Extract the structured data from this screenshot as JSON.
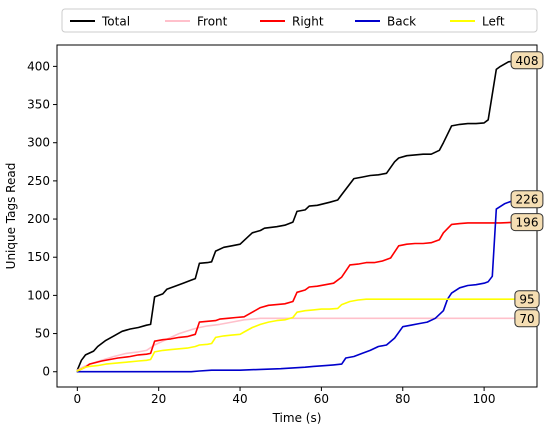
{
  "chart_data": {
    "type": "line",
    "title": "",
    "xlabel": "Time (s)",
    "ylabel": "Unique Tags Read",
    "xlim": [
      -5,
      113
    ],
    "ylim": [
      -20,
      428
    ],
    "xticks": [
      0,
      20,
      40,
      60,
      80,
      100
    ],
    "yticks": [
      0,
      50,
      100,
      150,
      200,
      250,
      300,
      350,
      400
    ],
    "grid": false,
    "legend_position": "top",
    "series": [
      {
        "name": "Total",
        "color": "#000000",
        "end_label": "408",
        "points": [
          [
            0,
            2
          ],
          [
            1,
            15
          ],
          [
            2,
            22
          ],
          [
            4,
            27
          ],
          [
            5,
            33
          ],
          [
            7,
            41
          ],
          [
            9,
            47
          ],
          [
            11,
            53
          ],
          [
            13,
            56
          ],
          [
            15,
            58
          ],
          [
            17,
            61
          ],
          [
            18,
            62
          ],
          [
            19,
            98
          ],
          [
            21,
            102
          ],
          [
            22,
            108
          ],
          [
            24,
            112
          ],
          [
            26,
            116
          ],
          [
            28,
            120
          ],
          [
            29,
            122
          ],
          [
            30,
            142
          ],
          [
            32,
            143
          ],
          [
            33,
            144
          ],
          [
            34,
            158
          ],
          [
            36,
            163
          ],
          [
            38,
            165
          ],
          [
            40,
            167
          ],
          [
            41,
            172
          ],
          [
            43,
            182
          ],
          [
            45,
            185
          ],
          [
            46,
            188
          ],
          [
            49,
            190
          ],
          [
            51,
            192
          ],
          [
            53,
            196
          ],
          [
            54,
            210
          ],
          [
            56,
            212
          ],
          [
            57,
            217
          ],
          [
            59,
            218
          ],
          [
            62,
            222
          ],
          [
            64,
            225
          ],
          [
            65,
            232
          ],
          [
            68,
            253
          ],
          [
            70,
            255
          ],
          [
            72,
            257
          ],
          [
            74,
            258
          ],
          [
            76,
            260
          ],
          [
            78,
            275
          ],
          [
            79,
            280
          ],
          [
            81,
            283
          ],
          [
            83,
            284
          ],
          [
            85,
            285
          ],
          [
            87,
            285
          ],
          [
            89,
            290
          ],
          [
            90,
            300
          ],
          [
            92,
            322
          ],
          [
            94,
            324
          ],
          [
            96,
            325
          ],
          [
            98,
            325
          ],
          [
            100,
            326
          ],
          [
            101,
            330
          ],
          [
            103,
            396
          ],
          [
            104,
            400
          ],
          [
            106,
            406
          ],
          [
            109,
            408
          ]
        ]
      },
      {
        "name": "Front",
        "color": "#ffc0cb",
        "end_label": "70",
        "points": [
          [
            0,
            2
          ],
          [
            1,
            5
          ],
          [
            3,
            10
          ],
          [
            6,
            15
          ],
          [
            9,
            20
          ],
          [
            12,
            24
          ],
          [
            15,
            26
          ],
          [
            17,
            28
          ],
          [
            19,
            35
          ],
          [
            21,
            40
          ],
          [
            23,
            45
          ],
          [
            25,
            50
          ],
          [
            28,
            55
          ],
          [
            30,
            58
          ],
          [
            32,
            60
          ],
          [
            35,
            62
          ],
          [
            38,
            65
          ],
          [
            41,
            68
          ],
          [
            45,
            70
          ],
          [
            50,
            70
          ],
          [
            60,
            70
          ],
          [
            70,
            70
          ],
          [
            80,
            70
          ],
          [
            90,
            70
          ],
          [
            100,
            70
          ],
          [
            109,
            70
          ]
        ]
      },
      {
        "name": "Right",
        "color": "#ff0000",
        "end_label": "196",
        "points": [
          [
            0,
            1
          ],
          [
            2,
            6
          ],
          [
            3,
            10
          ],
          [
            6,
            14
          ],
          [
            8,
            16
          ],
          [
            10,
            18
          ],
          [
            13,
            20
          ],
          [
            15,
            22
          ],
          [
            17,
            23
          ],
          [
            18,
            24
          ],
          [
            19,
            40
          ],
          [
            21,
            42
          ],
          [
            23,
            43
          ],
          [
            25,
            45
          ],
          [
            27,
            46
          ],
          [
            29,
            49
          ],
          [
            30,
            65
          ],
          [
            32,
            66
          ],
          [
            34,
            67
          ],
          [
            35,
            69
          ],
          [
            37,
            70
          ],
          [
            39,
            71
          ],
          [
            41,
            72
          ],
          [
            43,
            78
          ],
          [
            45,
            84
          ],
          [
            47,
            87
          ],
          [
            49,
            88
          ],
          [
            51,
            89
          ],
          [
            53,
            92
          ],
          [
            54,
            104
          ],
          [
            56,
            107
          ],
          [
            57,
            111
          ],
          [
            59,
            112
          ],
          [
            61,
            114
          ],
          [
            63,
            116
          ],
          [
            65,
            124
          ],
          [
            67,
            140
          ],
          [
            69,
            141
          ],
          [
            71,
            143
          ],
          [
            73,
            143
          ],
          [
            75,
            145
          ],
          [
            77,
            149
          ],
          [
            79,
            165
          ],
          [
            81,
            167
          ],
          [
            83,
            168
          ],
          [
            85,
            168
          ],
          [
            87,
            169
          ],
          [
            89,
            173
          ],
          [
            90,
            182
          ],
          [
            92,
            193
          ],
          [
            94,
            194
          ],
          [
            96,
            195
          ],
          [
            100,
            195
          ],
          [
            104,
            195
          ],
          [
            109,
            196
          ]
        ]
      },
      {
        "name": "Back",
        "color": "#0000cc",
        "end_label": "226",
        "points": [
          [
            0,
            0
          ],
          [
            10,
            0
          ],
          [
            20,
            0
          ],
          [
            28,
            0
          ],
          [
            30,
            1
          ],
          [
            33,
            2
          ],
          [
            40,
            2
          ],
          [
            45,
            3
          ],
          [
            50,
            4
          ],
          [
            53,
            5
          ],
          [
            56,
            6
          ],
          [
            58,
            7
          ],
          [
            61,
            8
          ],
          [
            63,
            9
          ],
          [
            65,
            10
          ],
          [
            66,
            18
          ],
          [
            68,
            20
          ],
          [
            70,
            24
          ],
          [
            72,
            28
          ],
          [
            74,
            33
          ],
          [
            76,
            35
          ],
          [
            78,
            44
          ],
          [
            80,
            59
          ],
          [
            82,
            61
          ],
          [
            84,
            63
          ],
          [
            86,
            65
          ],
          [
            88,
            70
          ],
          [
            90,
            80
          ],
          [
            91,
            95
          ],
          [
            92,
            103
          ],
          [
            94,
            110
          ],
          [
            96,
            113
          ],
          [
            98,
            114
          ],
          [
            100,
            116
          ],
          [
            101,
            118
          ],
          [
            102,
            125
          ],
          [
            103,
            213
          ],
          [
            105,
            220
          ],
          [
            107,
            224
          ],
          [
            109,
            226
          ]
        ]
      },
      {
        "name": "Left",
        "color": "#ffff00",
        "end_label": "95",
        "points": [
          [
            0,
            1
          ],
          [
            2,
            6
          ],
          [
            3,
            7
          ],
          [
            5,
            8
          ],
          [
            7,
            10
          ],
          [
            9,
            11
          ],
          [
            11,
            12
          ],
          [
            13,
            13
          ],
          [
            15,
            14
          ],
          [
            17,
            15
          ],
          [
            18,
            16
          ],
          [
            19,
            26
          ],
          [
            21,
            28
          ],
          [
            23,
            29
          ],
          [
            25,
            30
          ],
          [
            27,
            31
          ],
          [
            29,
            33
          ],
          [
            30,
            35
          ],
          [
            32,
            36
          ],
          [
            33,
            37
          ],
          [
            34,
            45
          ],
          [
            36,
            47
          ],
          [
            38,
            48
          ],
          [
            40,
            49
          ],
          [
            41,
            52
          ],
          [
            43,
            58
          ],
          [
            45,
            62
          ],
          [
            47,
            65
          ],
          [
            49,
            67
          ],
          [
            51,
            68
          ],
          [
            53,
            71
          ],
          [
            54,
            78
          ],
          [
            56,
            80
          ],
          [
            58,
            81
          ],
          [
            60,
            82
          ],
          [
            62,
            82
          ],
          [
            64,
            83
          ],
          [
            65,
            88
          ],
          [
            67,
            92
          ],
          [
            69,
            94
          ],
          [
            71,
            95
          ],
          [
            80,
            95
          ],
          [
            90,
            95
          ],
          [
            100,
            95
          ],
          [
            109,
            95
          ]
        ]
      }
    ]
  }
}
